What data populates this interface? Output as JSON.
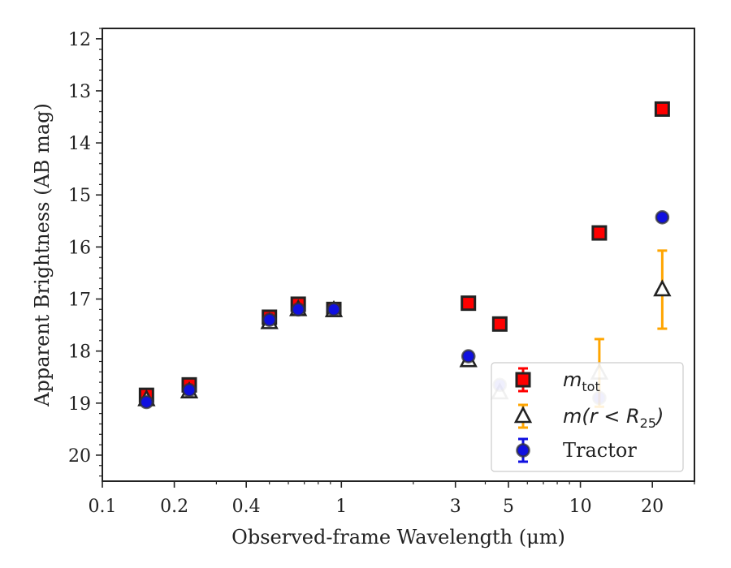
{
  "chart_data": {
    "type": "scatter",
    "title": "",
    "xlabel": "Observed-frame Wavelength (μm)",
    "ylabel": "Apparent Brightness (AB mag)",
    "xscale": "log",
    "xlim": [
      0.1,
      30
    ],
    "ylim": [
      20.5,
      11.8
    ],
    "y_inverted": true,
    "x_ticks": [
      0.1,
      0.2,
      0.4,
      1,
      3,
      5,
      10,
      20
    ],
    "x_tick_labels": [
      "0.1",
      "0.2",
      "0.4",
      "1",
      "3",
      "5",
      "10",
      "20"
    ],
    "y_ticks": [
      12,
      13,
      14,
      15,
      16,
      17,
      18,
      19,
      20
    ],
    "y_tick_labels": [
      "12",
      "13",
      "14",
      "15",
      "16",
      "17",
      "18",
      "19",
      "20"
    ],
    "grid": false,
    "legend_position": "lower-right",
    "series": [
      {
        "name_main": "m",
        "name_sub": "tot",
        "name_rest": "",
        "marker": "square",
        "color": "#ff0000",
        "edgecolor": "#222222",
        "points": [
          {
            "x": 0.153,
            "y": 18.85,
            "err": 0.05
          },
          {
            "x": 0.231,
            "y": 18.65,
            "err": 0.05
          },
          {
            "x": 0.5,
            "y": 17.35,
            "err": 0.05
          },
          {
            "x": 0.66,
            "y": 17.1,
            "err": 0.05
          },
          {
            "x": 0.93,
            "y": 17.2,
            "err": 0.05
          },
          {
            "x": 3.4,
            "y": 17.08,
            "err": 0.05
          },
          {
            "x": 4.6,
            "y": 17.48,
            "err": 0.05
          },
          {
            "x": 12.0,
            "y": 15.73,
            "err": 0.05
          },
          {
            "x": 22.0,
            "y": 13.35,
            "err": 0.05
          }
        ]
      },
      {
        "name_main": "m(r < R",
        "name_sub": "25",
        "name_rest": ")",
        "marker": "triangle",
        "color": "#ffffff",
        "edgecolor": "#222222",
        "errcolor": "#ffa500",
        "points": [
          {
            "x": 0.153,
            "y": 18.93,
            "err": 0.05
          },
          {
            "x": 0.231,
            "y": 18.78,
            "err": 0.05
          },
          {
            "x": 0.5,
            "y": 17.45,
            "err": 0.05
          },
          {
            "x": 0.66,
            "y": 17.2,
            "err": 0.05
          },
          {
            "x": 0.93,
            "y": 17.22,
            "err": 0.05
          },
          {
            "x": 3.4,
            "y": 18.18,
            "err": 0.05
          },
          {
            "x": 4.6,
            "y": 18.8,
            "err": 0.05
          },
          {
            "x": 12.0,
            "y": 18.42,
            "err": 0.65
          },
          {
            "x": 22.0,
            "y": 16.82,
            "err": 0.75
          }
        ]
      },
      {
        "name_main": "Tractor",
        "name_sub": "",
        "name_rest": "",
        "marker": "circle",
        "color": "#1010e0",
        "edgecolor": "#333333",
        "errcolor": "#1010e0",
        "points": [
          {
            "x": 0.153,
            "y": 18.98,
            "err": 0.05
          },
          {
            "x": 0.231,
            "y": 18.75,
            "err": 0.05
          },
          {
            "x": 0.5,
            "y": 17.4,
            "err": 0.05
          },
          {
            "x": 0.66,
            "y": 17.2,
            "err": 0.05
          },
          {
            "x": 0.93,
            "y": 17.2,
            "err": 0.05
          },
          {
            "x": 3.4,
            "y": 18.1,
            "err": 0.05
          },
          {
            "x": 4.6,
            "y": 18.65,
            "err": 0.05
          },
          {
            "x": 12.0,
            "y": 18.9,
            "err": 0.05
          },
          {
            "x": 22.0,
            "y": 15.43,
            "err": 0.05
          }
        ]
      }
    ]
  }
}
